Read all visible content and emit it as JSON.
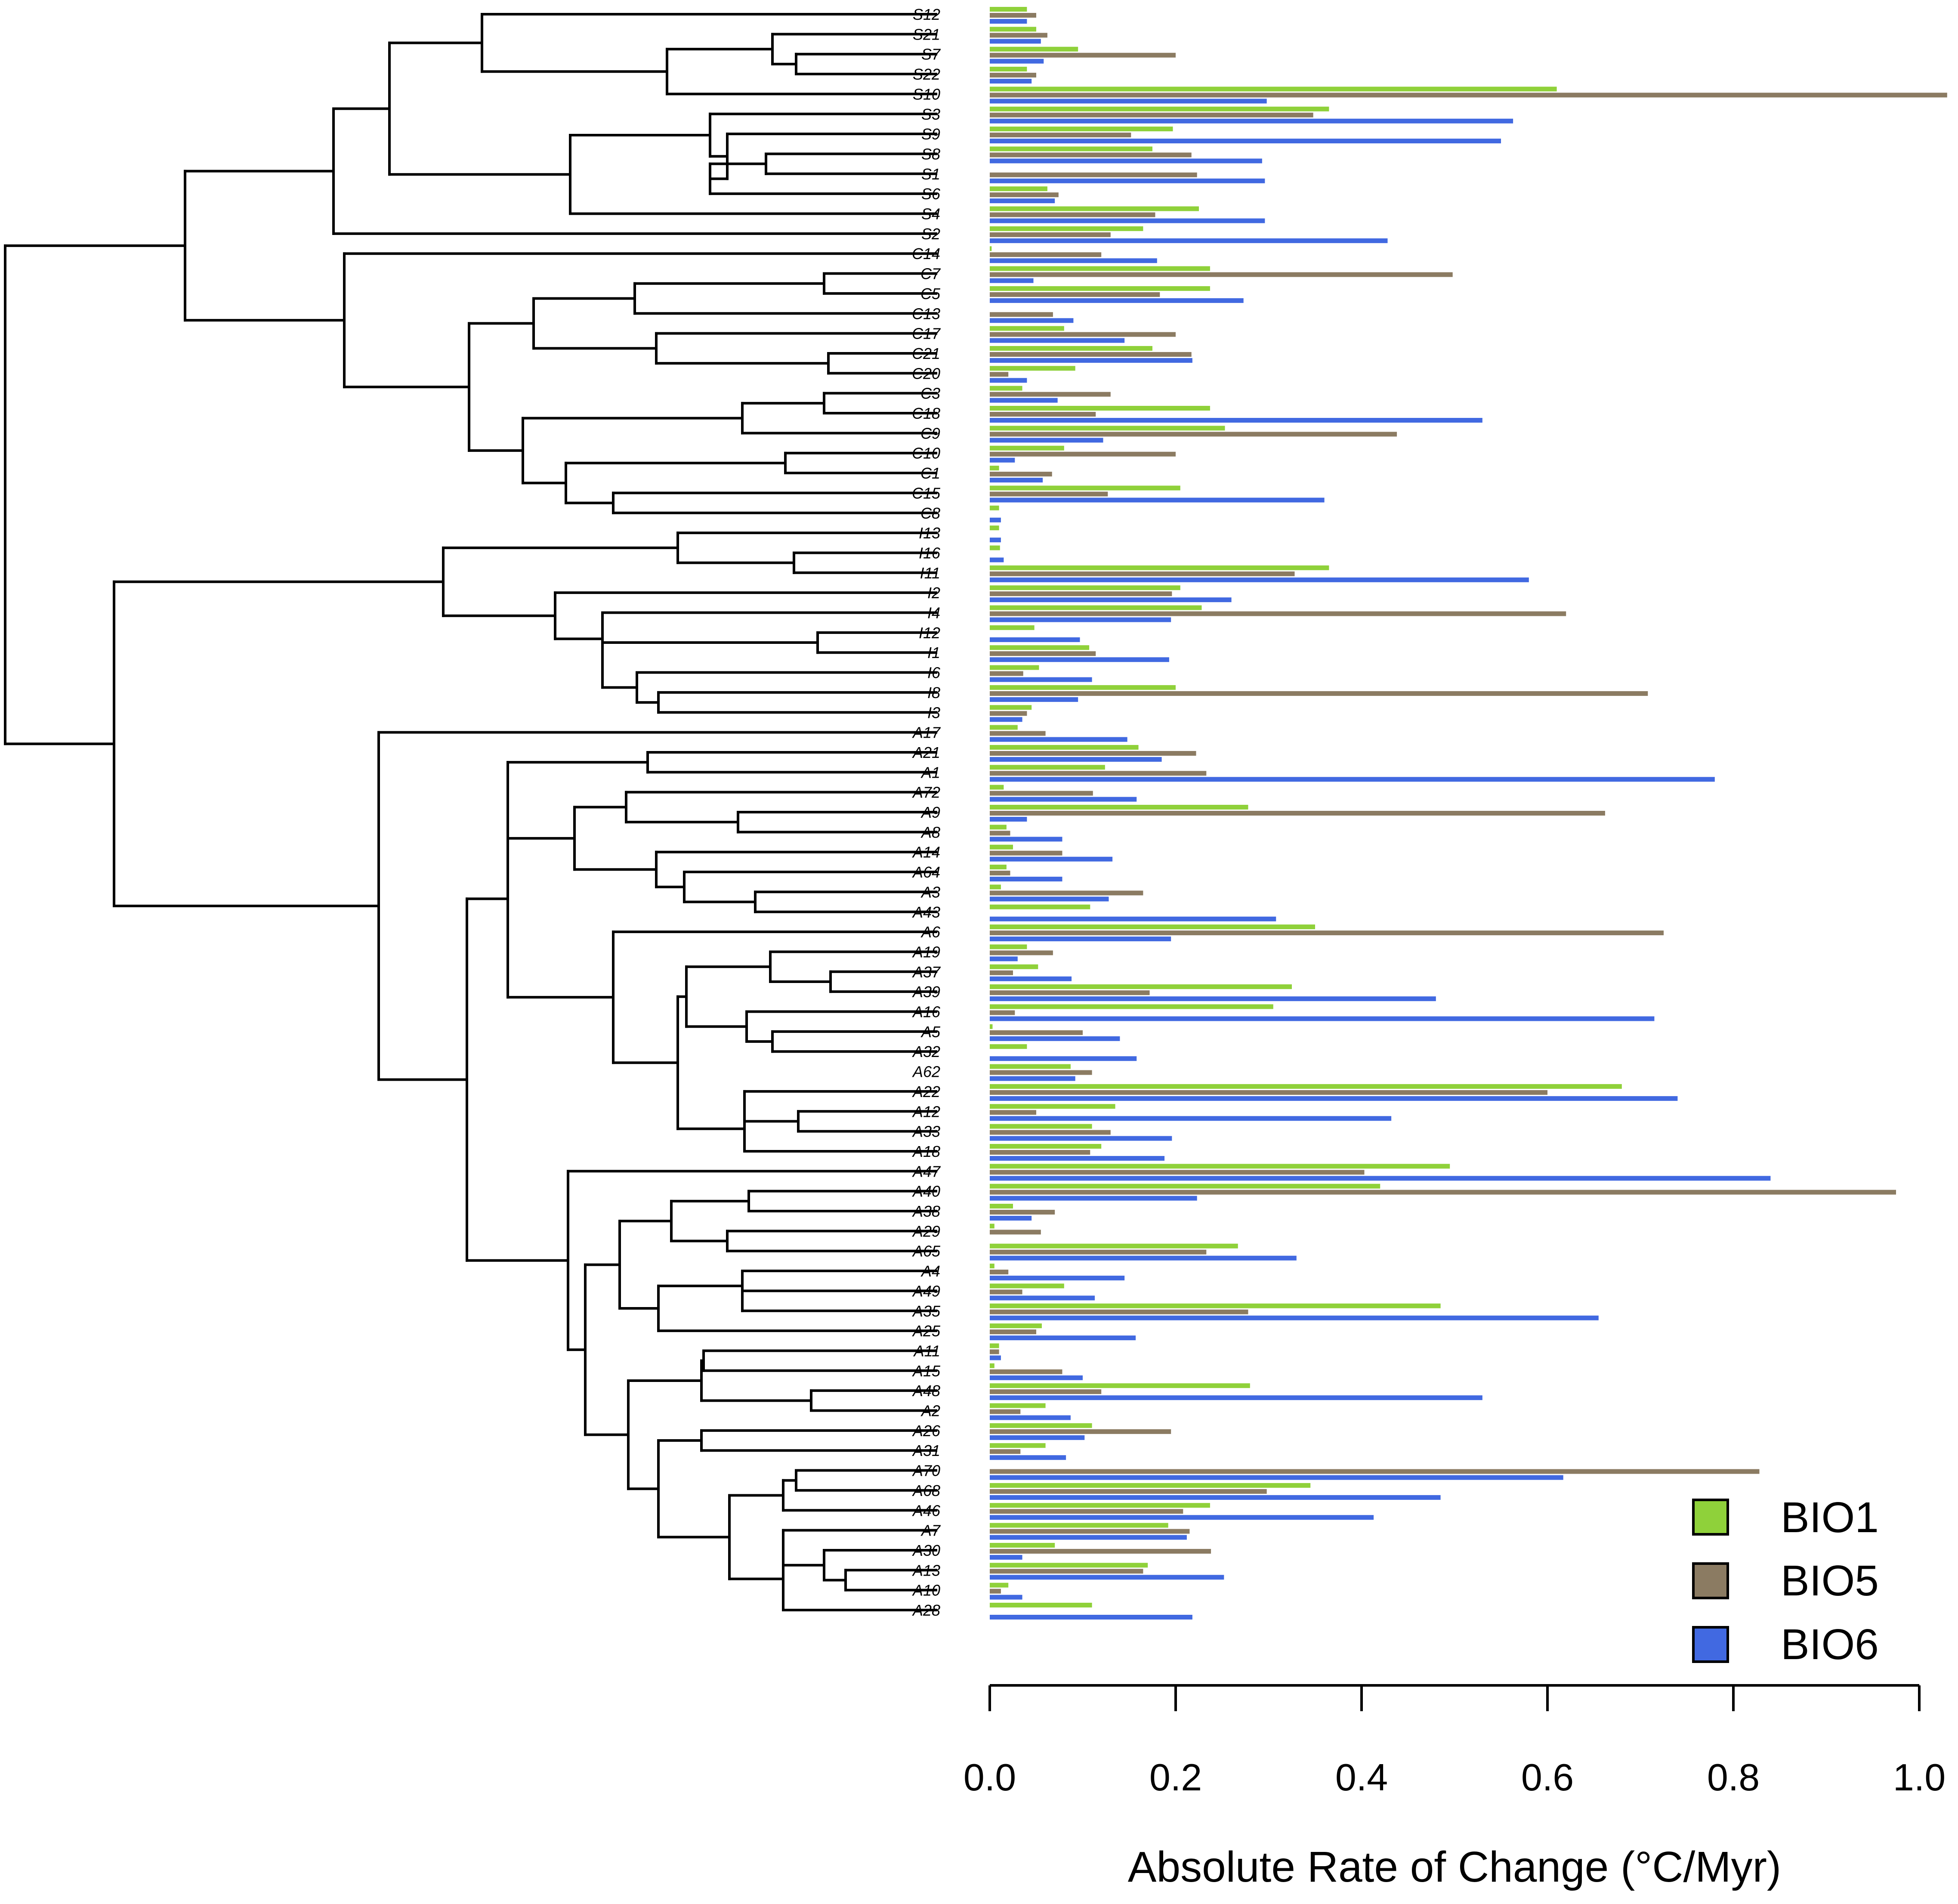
{
  "chart_data": {
    "type": "bar",
    "orientation": "horizontal",
    "xlabel": "Absolute Rate of Change (°C/Myr)",
    "xlim": [
      0,
      1.0
    ],
    "xticks": [
      "0.0",
      "0.2",
      "0.4",
      "0.6",
      "0.8",
      "1.0"
    ],
    "legend": {
      "position": "bottom-right",
      "entries": [
        {
          "name": "BIO1",
          "color": "#8fd13a"
        },
        {
          "name": "BIO5",
          "color": "#8b7b62"
        },
        {
          "name": "BIO6",
          "color": "#4169e1"
        }
      ]
    },
    "categories": [
      "S12",
      "S21",
      "S7",
      "S22",
      "S10",
      "S3",
      "S9",
      "S8",
      "S1",
      "S6",
      "S4",
      "S2",
      "C14",
      "C7",
      "C5",
      "C13",
      "C17",
      "C21",
      "C20",
      "C3",
      "C18",
      "C9",
      "C10",
      "C1",
      "C15",
      "C8",
      "I13",
      "I16",
      "I11",
      "I2",
      "I4",
      "I12",
      "I1",
      "I6",
      "I8",
      "I3",
      "A17",
      "A21",
      "A1",
      "A72",
      "A9",
      "A8",
      "A14",
      "A64",
      "A3",
      "A43",
      "A6",
      "A19",
      "A37",
      "A39",
      "A16",
      "A5",
      "A32",
      "A62",
      "A22",
      "A12",
      "A33",
      "A18",
      "A47",
      "A40",
      "A38",
      "A29",
      "A65",
      "A4",
      "A49",
      "A35",
      "A25",
      "A11",
      "A15",
      "A48",
      "A2",
      "A26",
      "A31",
      "A70",
      "A68",
      "A46",
      "A7",
      "A30",
      "A13",
      "A10",
      "A28"
    ],
    "series": [
      {
        "name": "BIO1",
        "values": [
          0.04,
          0.05,
          0.095,
          0.04,
          0.61,
          0.365,
          0.197,
          0.175,
          0.0,
          0.062,
          0.225,
          0.165,
          0.002,
          0.237,
          0.237,
          0.0,
          0.08,
          0.175,
          0.092,
          0.035,
          0.237,
          0.253,
          0.08,
          0.01,
          0.205,
          0.01,
          0.01,
          0.011,
          0.365,
          0.205,
          0.228,
          0.048,
          0.107,
          0.053,
          0.2,
          0.045,
          0.03,
          0.16,
          0.124,
          0.015,
          0.278,
          0.018,
          0.025,
          0.018,
          0.012,
          0.108,
          0.35,
          0.04,
          0.052,
          0.325,
          0.305,
          0.003,
          0.04,
          0.087,
          0.68,
          0.135,
          0.11,
          0.12,
          0.495,
          0.42,
          0.025,
          0.005,
          0.267,
          0.005,
          0.08,
          0.485,
          0.056,
          0.01,
          0.005,
          0.28,
          0.06,
          0.11,
          0.06,
          0.0,
          0.345,
          0.237,
          0.192,
          0.07,
          0.17,
          0.02,
          0.11
        ]
      },
      {
        "name": "BIO5",
        "values": [
          0.05,
          0.062,
          0.2,
          0.05,
          1.03,
          0.348,
          0.152,
          0.217,
          0.223,
          0.074,
          0.178,
          0.13,
          0.12,
          0.498,
          0.183,
          0.068,
          0.2,
          0.217,
          0.02,
          0.13,
          0.114,
          0.438,
          0.2,
          0.067,
          0.127,
          0.0,
          0.0,
          0.0,
          0.328,
          0.196,
          0.62,
          0.0,
          0.114,
          0.036,
          0.708,
          0.04,
          0.06,
          0.222,
          0.233,
          0.111,
          0.662,
          0.022,
          0.078,
          0.022,
          0.165,
          0.0,
          0.725,
          0.068,
          0.025,
          0.172,
          0.027,
          0.1,
          0.0,
          0.11,
          0.6,
          0.05,
          0.13,
          0.108,
          0.403,
          0.975,
          0.07,
          0.055,
          0.233,
          0.02,
          0.035,
          0.278,
          0.05,
          0.01,
          0.078,
          0.12,
          0.033,
          0.195,
          0.033,
          0.828,
          0.298,
          0.208,
          0.215,
          0.238,
          0.165,
          0.012,
          0.0
        ]
      },
      {
        "name": "BIO6",
        "values": [
          0.04,
          0.055,
          0.058,
          0.045,
          0.298,
          0.563,
          0.55,
          0.293,
          0.296,
          0.07,
          0.296,
          0.428,
          0.18,
          0.047,
          0.273,
          0.09,
          0.145,
          0.218,
          0.04,
          0.073,
          0.53,
          0.122,
          0.027,
          0.057,
          0.36,
          0.012,
          0.012,
          0.015,
          0.58,
          0.26,
          0.195,
          0.097,
          0.193,
          0.11,
          0.095,
          0.035,
          0.148,
          0.185,
          0.78,
          0.158,
          0.04,
          0.078,
          0.132,
          0.078,
          0.128,
          0.308,
          0.195,
          0.03,
          0.088,
          0.48,
          0.715,
          0.14,
          0.158,
          0.092,
          0.74,
          0.432,
          0.196,
          0.188,
          0.84,
          0.223,
          0.045,
          0.0,
          0.33,
          0.145,
          0.113,
          0.655,
          0.157,
          0.012,
          0.1,
          0.53,
          0.087,
          0.102,
          0.082,
          0.617,
          0.485,
          0.413,
          0.212,
          0.035,
          0.252,
          0.035,
          0.218
        ]
      }
    ]
  }
}
